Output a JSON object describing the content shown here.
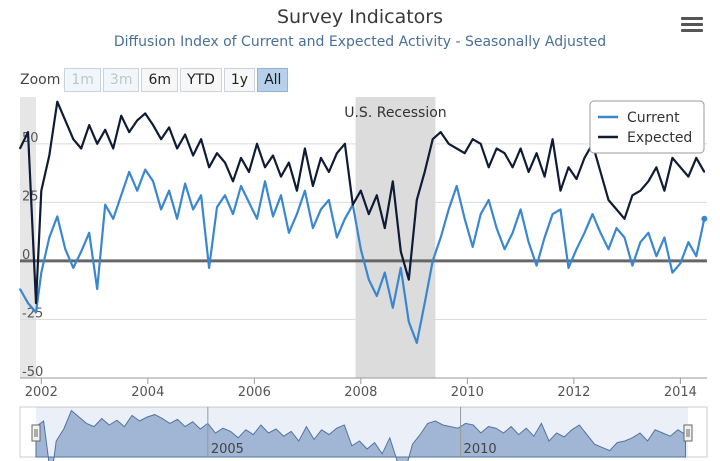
{
  "title": "Survey Indicators",
  "subtitle": "Diffusion Index of Current and Expected Activity - Seasonally Adjusted",
  "zoom": {
    "label": "Zoom",
    "buttons": [
      {
        "label": "1m",
        "state": "disabled"
      },
      {
        "label": "3m",
        "state": "disabled"
      },
      {
        "label": "6m",
        "state": "normal"
      },
      {
        "label": "YTD",
        "state": "normal"
      },
      {
        "label": "1y",
        "state": "normal"
      },
      {
        "label": "All",
        "state": "active"
      }
    ]
  },
  "menu_icon": "hamburger-menu-icon",
  "colors": {
    "current": "#3a87d0",
    "expected": "#0f1c36",
    "recession": "#dcdcdc",
    "navigator": "#a8bcd6"
  },
  "chart_data": {
    "type": "line",
    "title": "Survey Indicators",
    "subtitle": "Diffusion Index of Current and Expected Activity - Seasonally Adjusted",
    "ylim": [
      -50,
      70
    ],
    "xlim": [
      2001.6,
      2014.5
    ],
    "yticks": [
      -50,
      -25,
      0,
      25,
      50
    ],
    "ytick_labels": [
      "-50",
      "-25",
      "0",
      "25",
      "50"
    ],
    "xticks": [
      2002,
      2004,
      2006,
      2008,
      2010,
      2012,
      2014
    ],
    "xtick_labels": [
      "2002",
      "2004",
      "2006",
      "2008",
      "2010",
      "2012",
      "2014"
    ],
    "grid": true,
    "legend": "top-right",
    "recession": {
      "label": "U.S. Recession",
      "start": 2007.9,
      "end": 2009.4
    },
    "x": [
      2001.6,
      2001.75,
      2001.9,
      2002.0,
      2002.15,
      2002.3,
      2002.45,
      2002.6,
      2002.75,
      2002.9,
      2003.05,
      2003.2,
      2003.35,
      2003.5,
      2003.65,
      2003.8,
      2003.95,
      2004.1,
      2004.25,
      2004.4,
      2004.55,
      2004.7,
      2004.85,
      2005.0,
      2005.15,
      2005.3,
      2005.45,
      2005.6,
      2005.75,
      2005.9,
      2006.05,
      2006.2,
      2006.35,
      2006.5,
      2006.65,
      2006.8,
      2006.95,
      2007.1,
      2007.25,
      2007.4,
      2007.55,
      2007.7,
      2007.85,
      2008.0,
      2008.15,
      2008.3,
      2008.45,
      2008.6,
      2008.75,
      2008.9,
      2009.05,
      2009.2,
      2009.35,
      2009.5,
      2009.65,
      2009.8,
      2009.95,
      2010.1,
      2010.25,
      2010.4,
      2010.55,
      2010.7,
      2010.85,
      2011.0,
      2011.15,
      2011.3,
      2011.45,
      2011.6,
      2011.75,
      2011.9,
      2012.05,
      2012.2,
      2012.35,
      2012.5,
      2012.65,
      2012.8,
      2012.95,
      2013.1,
      2013.25,
      2013.4,
      2013.55,
      2013.7,
      2013.85,
      2014.0,
      2014.15,
      2014.3,
      2014.45
    ],
    "series": [
      {
        "name": "Current",
        "values": [
          -12,
          -18,
          -22,
          -5,
          10,
          19,
          5,
          -3,
          4,
          12,
          -12,
          24,
          18,
          28,
          38,
          30,
          39,
          34,
          22,
          30,
          18,
          33,
          22,
          28,
          -3,
          23,
          28,
          20,
          32,
          25,
          18,
          34,
          19,
          28,
          12,
          20,
          30,
          14,
          22,
          26,
          10,
          18,
          24,
          5,
          -8,
          -15,
          -5,
          -20,
          -3,
          -26,
          -35,
          -18,
          0,
          10,
          22,
          32,
          18,
          6,
          20,
          26,
          14,
          5,
          12,
          22,
          8,
          -2,
          10,
          20,
          22,
          -3,
          5,
          12,
          20,
          12,
          5,
          14,
          10,
          -2,
          8,
          12,
          2,
          10,
          -5,
          -1,
          8,
          2,
          18
        ]
      },
      {
        "name": "Expected",
        "values": [
          48,
          55,
          -18,
          30,
          45,
          68,
          60,
          52,
          48,
          58,
          50,
          56,
          48,
          62,
          55,
          60,
          63,
          58,
          52,
          57,
          48,
          54,
          45,
          52,
          40,
          46,
          42,
          34,
          44,
          38,
          50,
          40,
          45,
          36,
          42,
          30,
          48,
          32,
          44,
          38,
          46,
          50,
          24,
          30,
          20,
          28,
          14,
          34,
          4,
          -8,
          26,
          38,
          52,
          55,
          50,
          48,
          46,
          52,
          50,
          40,
          48,
          46,
          40,
          48,
          38,
          46,
          36,
          52,
          30,
          40,
          35,
          44,
          50,
          38,
          26,
          22,
          18,
          28,
          30,
          34,
          40,
          30,
          44,
          40,
          36,
          44,
          38
        ]
      }
    ],
    "navigator": {
      "labels": [
        "2005",
        "2010"
      ]
    }
  }
}
